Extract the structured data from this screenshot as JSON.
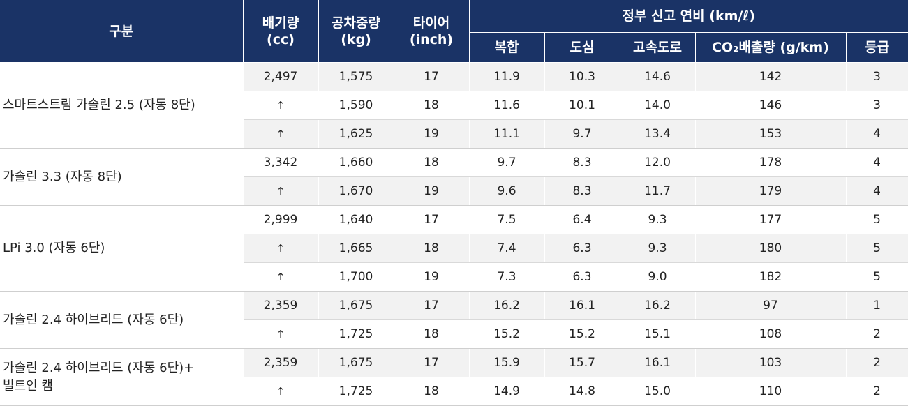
{
  "header": {
    "category": "구분",
    "displacement": "배기량\n(cc)",
    "curb_weight": "공차중량\n(kg)",
    "tire": "타이어\n(inch)",
    "fuel_economy_group": "정부 신고 연비 (km/ℓ)",
    "combined": "복합",
    "city": "도심",
    "highway": "고속도로",
    "co2": "CO₂배출량 (g/km)",
    "grade": "등급"
  },
  "groups": [
    {
      "label": "스마트스트림 가솔린 2.5 (자동 8단)",
      "rows": [
        [
          "2,497",
          "1,575",
          "17",
          "11.9",
          "10.3",
          "14.6",
          "142",
          "3"
        ],
        [
          "↑",
          "1,590",
          "18",
          "11.6",
          "10.1",
          "14.0",
          "146",
          "3"
        ],
        [
          "↑",
          "1,625",
          "19",
          "11.1",
          "9.7",
          "13.4",
          "153",
          "4"
        ]
      ]
    },
    {
      "label": "가솔린 3.3 (자동 8단)",
      "rows": [
        [
          "3,342",
          "1,660",
          "18",
          "9.7",
          "8.3",
          "12.0",
          "178",
          "4"
        ],
        [
          "↑",
          "1,670",
          "19",
          "9.6",
          "8.3",
          "11.7",
          "179",
          "4"
        ]
      ]
    },
    {
      "label": "LPi 3.0 (자동 6단)",
      "rows": [
        [
          "2,999",
          "1,640",
          "17",
          "7.5",
          "6.4",
          "9.3",
          "177",
          "5"
        ],
        [
          "↑",
          "1,665",
          "18",
          "7.4",
          "6.3",
          "9.3",
          "180",
          "5"
        ],
        [
          "↑",
          "1,700",
          "19",
          "7.3",
          "6.3",
          "9.0",
          "182",
          "5"
        ]
      ]
    },
    {
      "label": "가솔린 2.4 하이브리드 (자동 6단)",
      "rows": [
        [
          "2,359",
          "1,675",
          "17",
          "16.2",
          "16.1",
          "16.2",
          "97",
          "1"
        ],
        [
          "↑",
          "1,725",
          "18",
          "15.2",
          "15.2",
          "15.1",
          "108",
          "2"
        ]
      ]
    },
    {
      "label": "가솔린 2.4 하이브리드 (자동 6단)+\n빌트인 캠",
      "rows": [
        [
          "2,359",
          "1,675",
          "17",
          "15.9",
          "15.7",
          "16.1",
          "103",
          "2"
        ],
        [
          "↑",
          "1,725",
          "18",
          "14.9",
          "14.8",
          "15.0",
          "110",
          "2"
        ]
      ]
    }
  ]
}
